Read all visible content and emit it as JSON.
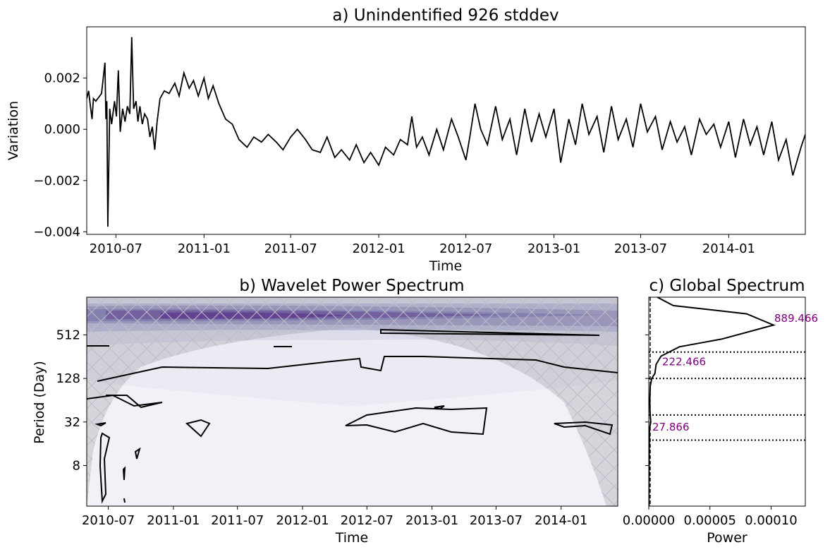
{
  "chart_data": [
    {
      "id": "a",
      "type": "line",
      "title": "a) Unindentified 926 stddev",
      "xlabel": "Time",
      "ylabel": "Variation",
      "x_range": [
        "2010-05-01",
        "2014-06-10"
      ],
      "ylim": [
        -0.0041,
        0.004
      ],
      "x_ticks": [
        "2010-07",
        "2011-01",
        "2011-07",
        "2012-01",
        "2012-07",
        "2013-01",
        "2013-07",
        "2014-01"
      ],
      "y_ticks": [
        0.002,
        0.0,
        -0.002,
        -0.004
      ],
      "y_tick_labels": [
        "0.002",
        "0.000",
        "−0.002",
        "−0.004"
      ],
      "grid": false,
      "series": [
        {
          "color": "#000000",
          "x": [
            "2010-05-01",
            "2010-05-05",
            "2010-05-08",
            "2010-05-12",
            "2010-05-15",
            "2010-05-20",
            "2010-06-01",
            "2010-06-08",
            "2010-06-10",
            "2010-06-12",
            "2010-06-14",
            "2010-06-18",
            "2010-06-22",
            "2010-06-28",
            "2010-07-02",
            "2010-07-06",
            "2010-07-10",
            "2010-07-15",
            "2010-07-20",
            "2010-07-25",
            "2010-07-30",
            "2010-08-03",
            "2010-08-07",
            "2010-08-12",
            "2010-08-16",
            "2010-08-20",
            "2010-08-25",
            "2010-08-30",
            "2010-09-05",
            "2010-09-10",
            "2010-09-15",
            "2010-09-20",
            "2010-09-25",
            "2010-10-01",
            "2010-10-10",
            "2010-10-20",
            "2010-11-01",
            "2010-11-10",
            "2010-11-20",
            "2010-12-01",
            "2010-12-10",
            "2010-12-20",
            "2011-01-01",
            "2011-01-10",
            "2011-01-20",
            "2011-02-01",
            "2011-02-15",
            "2011-03-01",
            "2011-03-15",
            "2011-04-01",
            "2011-04-15",
            "2011-05-01",
            "2011-05-15",
            "2011-06-01",
            "2011-06-15",
            "2011-07-01",
            "2011-07-15",
            "2011-08-01",
            "2011-08-15",
            "2011-09-01",
            "2011-09-15",
            "2011-10-01",
            "2011-10-15",
            "2011-11-01",
            "2011-11-15",
            "2011-12-01",
            "2011-12-15",
            "2012-01-01",
            "2012-01-15",
            "2012-02-01",
            "2012-02-15",
            "2012-03-01",
            "2012-03-10",
            "2012-03-20",
            "2012-04-01",
            "2012-04-15",
            "2012-05-01",
            "2012-05-15",
            "2012-06-01",
            "2012-06-15",
            "2012-07-01",
            "2012-07-10",
            "2012-07-20",
            "2012-08-01",
            "2012-08-15",
            "2012-09-01",
            "2012-09-15",
            "2012-10-01",
            "2012-10-15",
            "2012-11-01",
            "2012-11-15",
            "2012-12-01",
            "2012-12-15",
            "2013-01-01",
            "2013-01-15",
            "2013-02-01",
            "2013-02-15",
            "2013-03-01",
            "2013-03-15",
            "2013-04-01",
            "2013-04-15",
            "2013-05-01",
            "2013-05-15",
            "2013-06-01",
            "2013-06-15",
            "2013-07-01",
            "2013-07-15",
            "2013-08-01",
            "2013-08-15",
            "2013-09-01",
            "2013-09-15",
            "2013-10-01",
            "2013-10-15",
            "2013-11-01",
            "2013-11-15",
            "2013-12-01",
            "2013-12-15",
            "2014-01-01",
            "2014-01-15",
            "2014-02-01",
            "2014-02-15",
            "2014-03-01",
            "2014-03-15",
            "2014-04-01",
            "2014-04-15",
            "2014-05-01",
            "2014-05-15",
            "2014-06-01",
            "2014-06-10"
          ],
          "y": [
            0.0012,
            0.0015,
            0.001,
            0.0004,
            0.0012,
            0.0011,
            0.0014,
            0.0026,
            0.0004,
            0.0011,
            -0.0038,
            0.0008,
            0.0002,
            0.0011,
            0.0005,
            0.0023,
            -0.0001,
            0.0008,
            0.0003,
            0.0009,
            0.0006,
            0.0036,
            0.0008,
            0.0011,
            0.0003,
            0.0009,
            0.0002,
            0.0006,
            0.0004,
            -0.0003,
            0.0001,
            -0.0008,
            0.0003,
            0.0012,
            0.0015,
            0.0014,
            0.0018,
            0.0013,
            0.0022,
            0.0016,
            0.0019,
            0.0013,
            0.002,
            0.0012,
            0.0017,
            0.001,
            0.0004,
            0.0002,
            -0.0004,
            -0.0007,
            -0.0003,
            -0.0005,
            -0.0002,
            -0.0005,
            -0.0008,
            -0.0003,
            0.0,
            -0.0004,
            -0.0008,
            -0.0009,
            -0.0003,
            -0.0011,
            -0.0008,
            -0.0012,
            -0.0006,
            -0.0013,
            -0.0009,
            -0.0014,
            -0.0007,
            -0.001,
            -0.0004,
            -0.0006,
            0.0005,
            -0.0007,
            -0.0003,
            -0.001,
            0.0,
            -0.0008,
            0.0004,
            -0.0003,
            -0.0012,
            -0.0002,
            0.001,
            0.0,
            -0.0006,
            0.0009,
            -0.0004,
            0.0004,
            -0.001,
            0.0008,
            -0.0005,
            0.0006,
            -0.0003,
            0.0008,
            -0.0013,
            0.0004,
            -0.0006,
            0.001,
            -0.0002,
            0.0005,
            -0.0009,
            0.0009,
            -0.0004,
            0.0004,
            -0.0007,
            0.001,
            -0.0001,
            0.0005,
            -0.0008,
            0.0003,
            -0.0005,
            0.0001,
            -0.001,
            0.0004,
            -0.0002,
            0.0002,
            -0.0007,
            0.0003,
            -0.0011,
            0.0004,
            -0.0006,
            0.0001,
            -0.001,
            0.0003,
            -0.0012,
            -0.0004,
            -0.0018,
            -0.0007,
            -0.0002
          ]
        }
      ]
    },
    {
      "id": "b",
      "type": "heatmap",
      "title": "b) Wavelet Power Spectrum",
      "xlabel": "Time",
      "ylabel": "Period (Day)",
      "x_range": [
        "2010-05-01",
        "2014-06-10"
      ],
      "y_scale": "log2",
      "ylim": [
        2.2,
        1700
      ],
      "x_ticks": [
        "2010-07",
        "2011-01",
        "2011-07",
        "2012-01",
        "2012-07",
        "2013-01",
        "2013-07",
        "2014-01"
      ],
      "y_ticks": [
        512,
        128,
        32,
        8
      ],
      "colormap": "Purples",
      "band_center_period": 900,
      "cone_of_influence_hatch": true,
      "significance_contours": true
    },
    {
      "id": "c",
      "type": "line",
      "title": "c) Global Spectrum",
      "xlabel": "Power",
      "ylabel": "",
      "xlim": [
        0,
        0.000128
      ],
      "x_ticks": [
        0.0,
        5e-05,
        0.0001
      ],
      "x_tick_labels": [
        "0.00000",
        "0.00005",
        "0.00010"
      ],
      "y_scale": "log2",
      "ylim": [
        2.2,
        1700
      ],
      "peak_labels": [
        {
          "period": 889.466,
          "text": "889.466"
        },
        {
          "period": 222.466,
          "text": "222.466"
        },
        {
          "period": 27.866,
          "text": "27.866"
        }
      ],
      "reference_periods": [
        296,
        128,
        40,
        18
      ],
      "series": [
        {
          "color": "#000000",
          "power": [
            2e-07,
            2e-07,
            3e-07,
            4e-07,
            6e-07,
            1e-06,
            1.6e-06,
            1e-06,
            8e-07,
            1.2e-06,
            2.4e-06,
            5e-06,
            6e-06,
            1e-05,
            2.5e-05,
            6e-05,
            0.000102,
            8e-05,
            2e-05,
            7e-06
          ],
          "period": [
            2.2,
            4,
            8,
            16,
            24,
            28,
            32,
            45,
            64,
            100,
            128,
            150,
            200,
            260,
            350,
            450,
            700,
            1000,
            1300,
            1700
          ]
        }
      ]
    }
  ]
}
